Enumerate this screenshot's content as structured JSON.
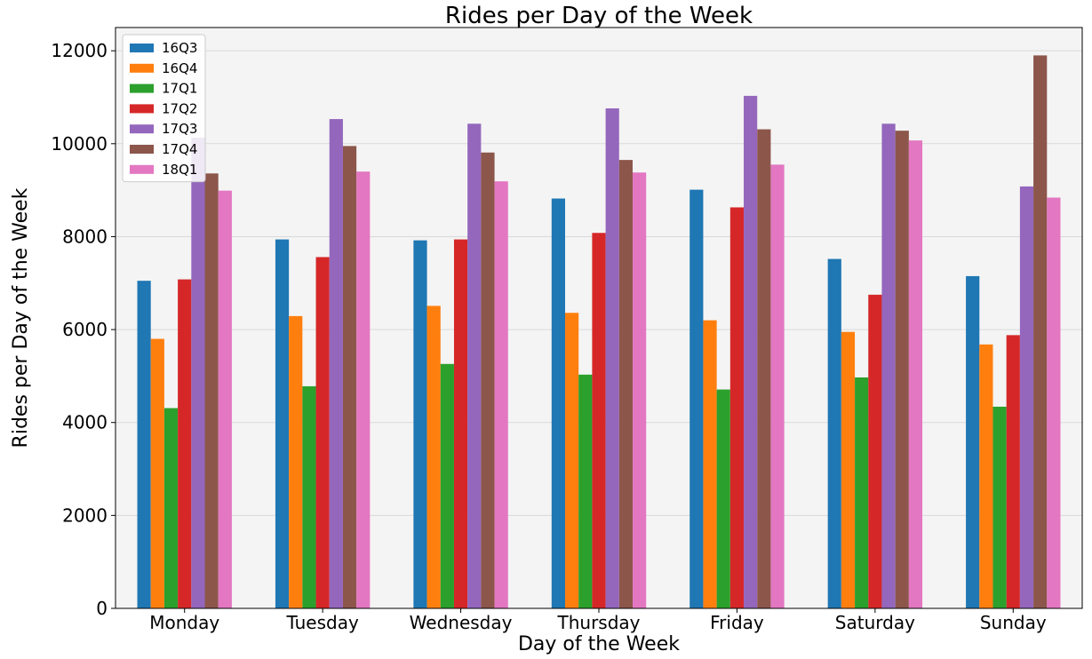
{
  "chart_data": {
    "type": "bar",
    "title": "Rides per Day of the Week",
    "xlabel": "Day of the Week",
    "ylabel": "Rides per Day of the Week",
    "categories": [
      "Monday",
      "Tuesday",
      "Wednesday",
      "Thursday",
      "Friday",
      "Saturday",
      "Sunday"
    ],
    "ylim": [
      0,
      12500
    ],
    "yticks": [
      0,
      2000,
      4000,
      6000,
      8000,
      10000,
      12000
    ],
    "grid": true,
    "legend_position": "top-left",
    "series": [
      {
        "name": "16Q3",
        "color": "#1f77b4",
        "values": [
          7050,
          7940,
          7920,
          8820,
          9010,
          7520,
          7150
        ]
      },
      {
        "name": "16Q4",
        "color": "#ff7f0e",
        "values": [
          5800,
          6290,
          6510,
          6360,
          6200,
          5950,
          5680
        ]
      },
      {
        "name": "17Q1",
        "color": "#2ca02c",
        "values": [
          4310,
          4780,
          5260,
          5030,
          4710,
          4970,
          4340
        ]
      },
      {
        "name": "17Q2",
        "color": "#d62728",
        "values": [
          7080,
          7560,
          7940,
          8080,
          8630,
          6750,
          5880
        ]
      },
      {
        "name": "17Q3",
        "color": "#9467bd",
        "values": [
          10130,
          10530,
          10430,
          10760,
          11030,
          10430,
          9080
        ]
      },
      {
        "name": "17Q4",
        "color": "#8c564b",
        "values": [
          9360,
          9950,
          9810,
          9650,
          10310,
          10280,
          11900
        ]
      },
      {
        "name": "18Q1",
        "color": "#e377c2",
        "values": [
          8990,
          9400,
          9190,
          9380,
          9550,
          10070,
          8840
        ]
      }
    ]
  }
}
